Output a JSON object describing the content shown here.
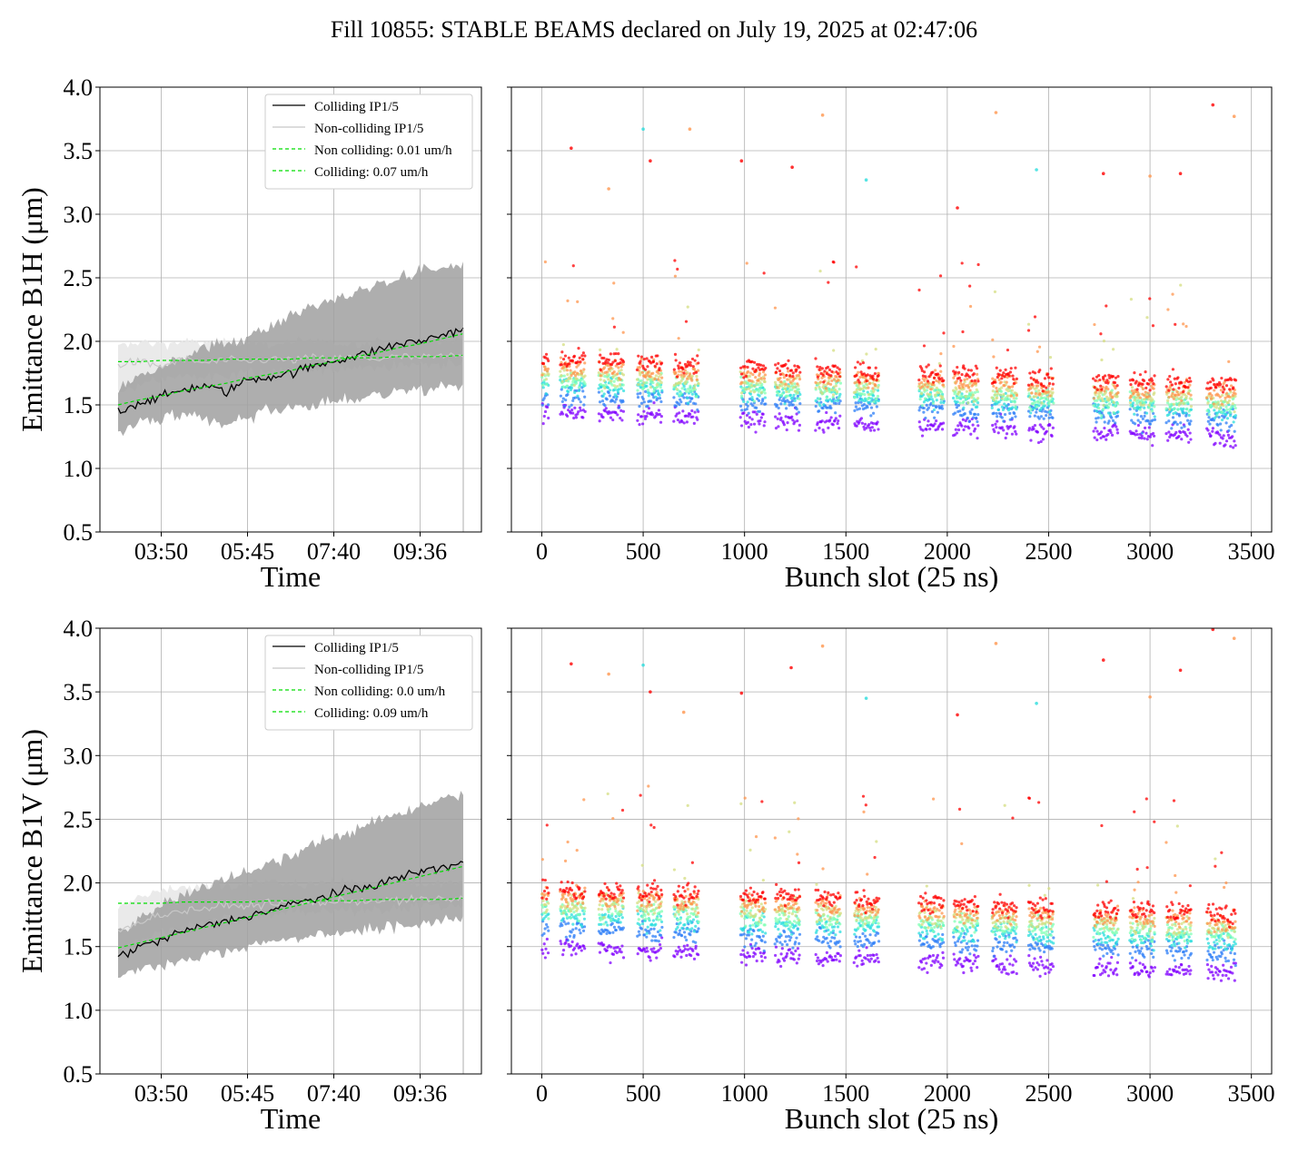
{
  "suptitle": "Fill 10855: STABLE BEAMS declared on July 19, 2025 at 02:47:06",
  "colors": {
    "colliding": "#000000",
    "noncolliding": "#c8c8c8",
    "band_colliding": "#a0a0a0",
    "band_noncolliding": "#e6e6e6",
    "fit": "#00dd00",
    "grid": "#b0b0b0"
  },
  "chart_data": [
    {
      "type": "line",
      "panel": "top-left",
      "xlabel": "Time",
      "ylabel": "Emittance B1H (μm)",
      "ylim": [
        0.5,
        4.0
      ],
      "yticks": [
        "0.5",
        "1.0",
        "1.5",
        "2.0",
        "2.5",
        "3.0",
        "3.5",
        "4.0"
      ],
      "xticks": [
        "03:50",
        "05:45",
        "07:40",
        "09:36"
      ],
      "grid": true,
      "legend_position": "top-right",
      "legend": [
        "Colliding IP1/5",
        "Non-colliding IP1/5",
        "Non colliding: 0.01 um/h",
        "Colliding: 0.07 um/h"
      ],
      "x": [
        "02:48",
        "03:20",
        "03:50",
        "04:20",
        "04:50",
        "05:15",
        "05:45",
        "06:15",
        "06:45",
        "07:10",
        "07:40",
        "08:10",
        "08:40",
        "09:05",
        "09:36",
        "10:00",
        "10:30"
      ],
      "series": [
        {
          "name": "Colliding IP1/5",
          "values": [
            1.45,
            1.52,
            1.56,
            1.62,
            1.65,
            1.6,
            1.7,
            1.72,
            1.75,
            1.8,
            1.85,
            1.88,
            1.93,
            1.98,
            2.0,
            2.05,
            2.1
          ]
        },
        {
          "name": "Non-colliding IP1/5",
          "values": [
            1.82,
            1.84,
            1.8,
            1.86,
            1.83,
            1.85,
            1.84,
            1.86,
            1.85,
            1.87,
            1.86,
            1.88,
            1.86,
            1.88,
            1.87,
            1.88,
            1.89
          ]
        },
        {
          "name": "Non colliding: 0.01 um/h",
          "values": [
            1.84,
            1.84,
            1.85,
            1.85,
            1.85,
            1.86,
            1.86,
            1.86,
            1.86,
            1.87,
            1.87,
            1.87,
            1.87,
            1.88,
            1.88,
            1.88,
            1.89
          ]
        },
        {
          "name": "Colliding: 0.07 um/h",
          "values": [
            1.5,
            1.54,
            1.57,
            1.61,
            1.64,
            1.67,
            1.71,
            1.74,
            1.77,
            1.81,
            1.84,
            1.88,
            1.91,
            1.95,
            1.98,
            2.02,
            2.06
          ]
        }
      ],
      "band_colliding": {
        "low": [
          1.3,
          1.35,
          1.38,
          1.42,
          1.38,
          1.35,
          1.4,
          1.45,
          1.48,
          1.5,
          1.52,
          1.55,
          1.58,
          1.6,
          1.62,
          1.63,
          1.65
        ],
        "high": [
          1.62,
          1.75,
          1.82,
          1.88,
          1.95,
          1.98,
          2.05,
          2.12,
          2.2,
          2.28,
          2.32,
          2.38,
          2.45,
          2.5,
          2.55,
          2.58,
          2.6
        ]
      },
      "band_noncolliding": {
        "low": [
          1.6,
          1.65,
          1.7,
          1.72,
          1.72,
          1.74,
          1.75,
          1.76,
          1.76,
          1.78,
          1.78,
          1.8,
          1.8,
          1.8,
          1.82,
          1.82,
          1.83
        ],
        "high": [
          1.95,
          2.0,
          1.98,
          2.0,
          1.98,
          1.99,
          2.0,
          1.98,
          1.99,
          2.0,
          1.98,
          1.99,
          2.0,
          1.99,
          2.0,
          2.0,
          2.0
        ]
      }
    },
    {
      "type": "scatter",
      "panel": "top-right",
      "xlabel": "Bunch slot (25 ns)",
      "xlim": [
        -150,
        3600
      ],
      "ylim": [
        0.5,
        4.0
      ],
      "xticks": [
        "0",
        "500",
        "1000",
        "1500",
        "2000",
        "2500",
        "3000",
        "3500"
      ],
      "grid": true,
      "bunch_trains": [
        [
          0,
          30
        ],
        [
          90,
          210
        ],
        [
          280,
          400
        ],
        [
          470,
          590
        ],
        [
          650,
          770
        ],
        [
          980,
          1100
        ],
        [
          1150,
          1270
        ],
        [
          1350,
          1470
        ],
        [
          1540,
          1660
        ],
        [
          1860,
          1980
        ],
        [
          2030,
          2150
        ],
        [
          2220,
          2340
        ],
        [
          2400,
          2520
        ],
        [
          2720,
          2840
        ],
        [
          2900,
          3020
        ],
        [
          3080,
          3200
        ],
        [
          3280,
          3420
        ]
      ],
      "color_levels": [
        {
          "color": "#8000ff",
          "y": 1.45
        },
        {
          "color": "#2c7ef7",
          "y": 1.58
        },
        {
          "color": "#2adddd",
          "y": 1.66
        },
        {
          "color": "#80ffb4",
          "y": 1.7
        },
        {
          "color": "#d4dd80",
          "y": 1.74
        },
        {
          "color": "#ff964e",
          "y": 1.8
        },
        {
          "color": "#ff0000",
          "y": 1.86
        }
      ],
      "trend_per_slot": -6e-05,
      "outliers": [
        {
          "x": 145,
          "y": 3.52
        },
        {
          "x": 330,
          "y": 3.2
        },
        {
          "x": 500,
          "y": 3.67
        },
        {
          "x": 535,
          "y": 3.42
        },
        {
          "x": 730,
          "y": 3.67
        },
        {
          "x": 985,
          "y": 3.42
        },
        {
          "x": 1235,
          "y": 3.37
        },
        {
          "x": 1385,
          "y": 3.78
        },
        {
          "x": 1600,
          "y": 3.27
        },
        {
          "x": 2050,
          "y": 3.05
        },
        {
          "x": 2240,
          "y": 3.8
        },
        {
          "x": 2440,
          "y": 3.35
        },
        {
          "x": 2770,
          "y": 3.32
        },
        {
          "x": 3000,
          "y": 3.3
        },
        {
          "x": 3150,
          "y": 3.32
        },
        {
          "x": 3310,
          "y": 3.86
        },
        {
          "x": 3415,
          "y": 3.77
        }
      ]
    },
    {
      "type": "line",
      "panel": "bottom-left",
      "xlabel": "Time",
      "ylabel": "Emittance B1V (μm)",
      "ylim": [
        0.5,
        4.0
      ],
      "yticks": [
        "0.5",
        "1.0",
        "1.5",
        "2.0",
        "2.5",
        "3.0",
        "3.5",
        "4.0"
      ],
      "xticks": [
        "03:50",
        "05:45",
        "07:40",
        "09:36"
      ],
      "grid": true,
      "legend_position": "top-right",
      "legend": [
        "Colliding IP1/5",
        "Non-colliding IP1/5",
        "Non colliding: 0.0 um/h",
        "Colliding: 0.09 um/h"
      ],
      "x": [
        "02:48",
        "03:20",
        "03:50",
        "04:20",
        "04:50",
        "05:15",
        "05:45",
        "06:15",
        "06:45",
        "07:10",
        "07:40",
        "08:10",
        "08:40",
        "09:05",
        "09:36",
        "10:00",
        "10:30"
      ],
      "series": [
        {
          "name": "Colliding IP1/5",
          "values": [
            1.42,
            1.5,
            1.55,
            1.62,
            1.66,
            1.7,
            1.74,
            1.78,
            1.83,
            1.87,
            1.91,
            1.95,
            1.99,
            2.04,
            2.09,
            2.12,
            2.16
          ]
        },
        {
          "name": "Non-colliding IP1/5",
          "values": [
            1.62,
            1.7,
            1.75,
            1.78,
            1.8,
            1.82,
            1.82,
            1.84,
            1.84,
            1.85,
            1.85,
            1.86,
            1.86,
            1.86,
            1.87,
            1.87,
            1.88
          ]
        },
        {
          "name": "Non colliding: 0.0 um/h",
          "values": [
            1.84,
            1.84,
            1.84,
            1.85,
            1.85,
            1.85,
            1.85,
            1.86,
            1.86,
            1.86,
            1.86,
            1.86,
            1.87,
            1.87,
            1.87,
            1.87,
            1.88
          ]
        },
        {
          "name": "Colliding: 0.09 um/h",
          "values": [
            1.49,
            1.53,
            1.57,
            1.61,
            1.65,
            1.69,
            1.73,
            1.77,
            1.81,
            1.85,
            1.89,
            1.93,
            1.97,
            2.01,
            2.05,
            2.09,
            2.13
          ]
        }
      ],
      "band_colliding": {
        "low": [
          1.27,
          1.32,
          1.36,
          1.4,
          1.43,
          1.46,
          1.5,
          1.53,
          1.56,
          1.58,
          1.6,
          1.62,
          1.64,
          1.66,
          1.68,
          1.7,
          1.72
        ],
        "high": [
          1.6,
          1.72,
          1.82,
          1.9,
          1.98,
          2.03,
          2.1,
          2.16,
          2.22,
          2.3,
          2.36,
          2.42,
          2.48,
          2.55,
          2.6,
          2.66,
          2.68
        ]
      },
      "band_noncolliding": {
        "low": [
          1.45,
          1.55,
          1.62,
          1.66,
          1.7,
          1.72,
          1.73,
          1.75,
          1.76,
          1.77,
          1.78,
          1.79,
          1.8,
          1.8,
          1.81,
          1.82,
          1.82
        ],
        "high": [
          1.8,
          1.9,
          1.95,
          1.97,
          1.98,
          1.99,
          2.0,
          2.0,
          2.0,
          2.0,
          2.0,
          2.0,
          2.0,
          2.0,
          2.0,
          2.0,
          2.0
        ]
      }
    },
    {
      "type": "scatter",
      "panel": "bottom-right",
      "xlabel": "Bunch slot (25 ns)",
      "xlim": [
        -150,
        3600
      ],
      "ylim": [
        0.5,
        4.0
      ],
      "xticks": [
        "0",
        "500",
        "1000",
        "1500",
        "2000",
        "2500",
        "3000",
        "3500"
      ],
      "grid": true,
      "bunch_trains": [
        [
          0,
          30
        ],
        [
          90,
          210
        ],
        [
          280,
          400
        ],
        [
          470,
          590
        ],
        [
          650,
          770
        ],
        [
          980,
          1100
        ],
        [
          1150,
          1270
        ],
        [
          1350,
          1470
        ],
        [
          1540,
          1660
        ],
        [
          1860,
          1980
        ],
        [
          2030,
          2150
        ],
        [
          2220,
          2340
        ],
        [
          2400,
          2520
        ],
        [
          2720,
          2840
        ],
        [
          2900,
          3020
        ],
        [
          3080,
          3200
        ],
        [
          3280,
          3420
        ]
      ],
      "color_levels": [
        {
          "color": "#8000ff",
          "y": 1.5
        },
        {
          "color": "#2c7ef7",
          "y": 1.65
        },
        {
          "color": "#2adddd",
          "y": 1.74
        },
        {
          "color": "#80ffb4",
          "y": 1.8
        },
        {
          "color": "#d4dd80",
          "y": 1.85
        },
        {
          "color": "#ff964e",
          "y": 1.9
        },
        {
          "color": "#ff0000",
          "y": 1.96
        }
      ],
      "trend_per_slot": -6e-05,
      "outliers": [
        {
          "x": 145,
          "y": 3.72
        },
        {
          "x": 330,
          "y": 3.64
        },
        {
          "x": 500,
          "y": 3.71
        },
        {
          "x": 535,
          "y": 3.5
        },
        {
          "x": 700,
          "y": 3.34
        },
        {
          "x": 985,
          "y": 3.49
        },
        {
          "x": 1230,
          "y": 3.69
        },
        {
          "x": 1385,
          "y": 3.86
        },
        {
          "x": 1600,
          "y": 3.45
        },
        {
          "x": 2050,
          "y": 3.32
        },
        {
          "x": 2240,
          "y": 3.88
        },
        {
          "x": 2440,
          "y": 3.41
        },
        {
          "x": 2770,
          "y": 3.75
        },
        {
          "x": 3000,
          "y": 3.46
        },
        {
          "x": 3150,
          "y": 3.67
        },
        {
          "x": 3310,
          "y": 3.99
        },
        {
          "x": 3415,
          "y": 3.92
        }
      ]
    }
  ]
}
